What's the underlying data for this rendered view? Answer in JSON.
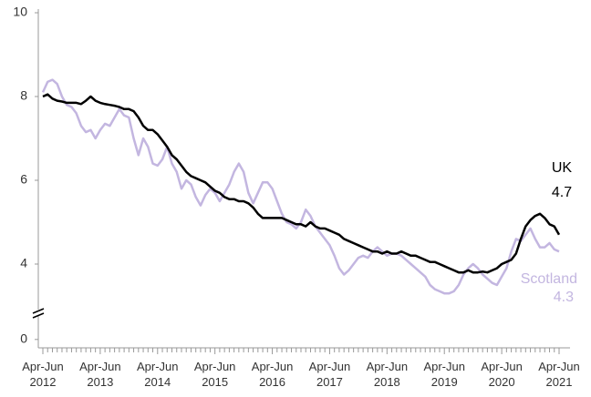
{
  "chart_data": {
    "type": "line",
    "categories": [
      "Apr-Jun 2012",
      null,
      null,
      null,
      null,
      null,
      null,
      null,
      null,
      null,
      null,
      null,
      "Apr-Jun 2013",
      null,
      null,
      null,
      null,
      null,
      null,
      null,
      null,
      null,
      null,
      null,
      "Apr-Jun 2014",
      null,
      null,
      null,
      null,
      null,
      null,
      null,
      null,
      null,
      null,
      null,
      "Apr-Jun 2015",
      null,
      null,
      null,
      null,
      null,
      null,
      null,
      null,
      null,
      null,
      null,
      "Apr-Jun 2016",
      null,
      null,
      null,
      null,
      null,
      null,
      null,
      null,
      null,
      null,
      null,
      "Apr-Jun 2017",
      null,
      null,
      null,
      null,
      null,
      null,
      null,
      null,
      null,
      null,
      null,
      "Apr-Jun 2018",
      null,
      null,
      null,
      null,
      null,
      null,
      null,
      null,
      null,
      null,
      null,
      "Apr-Jun 2019",
      null,
      null,
      null,
      null,
      null,
      null,
      null,
      null,
      null,
      null,
      null,
      "Apr-Jun 2020",
      null,
      null,
      null,
      null,
      null,
      null,
      null,
      null,
      null,
      null,
      null,
      "Apr-Jun 2021"
    ],
    "series": [
      {
        "name": "UK",
        "color": "#000000",
        "values": [
          8.0,
          8.05,
          7.95,
          7.9,
          7.88,
          7.85,
          7.85,
          7.85,
          7.82,
          7.9,
          8.0,
          7.9,
          7.85,
          7.82,
          7.8,
          7.78,
          7.75,
          7.7,
          7.7,
          7.65,
          7.5,
          7.3,
          7.2,
          7.2,
          7.1,
          6.95,
          6.8,
          6.6,
          6.5,
          6.35,
          6.2,
          6.1,
          6.05,
          6.0,
          5.95,
          5.85,
          5.75,
          5.7,
          5.6,
          5.55,
          5.55,
          5.5,
          5.5,
          5.45,
          5.35,
          5.2,
          5.1,
          5.1,
          5.1,
          5.1,
          5.1,
          5.05,
          5.0,
          4.95,
          4.95,
          4.9,
          5.0,
          4.9,
          4.85,
          4.85,
          4.8,
          4.75,
          4.7,
          4.6,
          4.55,
          4.5,
          4.45,
          4.4,
          4.35,
          4.3,
          4.3,
          4.25,
          4.3,
          4.25,
          4.25,
          4.3,
          4.25,
          4.2,
          4.2,
          4.15,
          4.1,
          4.05,
          4.05,
          4.0,
          3.95,
          3.9,
          3.85,
          3.8,
          3.8,
          3.85,
          3.8,
          3.8,
          3.82,
          3.8,
          3.85,
          3.9,
          4.0,
          4.05,
          4.1,
          4.25,
          4.6,
          4.9,
          5.05,
          5.15,
          5.2,
          5.1,
          4.95,
          4.9,
          4.7
        ]
      },
      {
        "name": "Scotland",
        "color": "#c3b6e0",
        "values": [
          8.1,
          8.35,
          8.4,
          8.3,
          8.0,
          7.8,
          7.75,
          7.6,
          7.3,
          7.15,
          7.2,
          7.0,
          7.2,
          7.35,
          7.3,
          7.5,
          7.7,
          7.55,
          7.5,
          7.0,
          6.6,
          7.0,
          6.8,
          6.4,
          6.35,
          6.5,
          6.8,
          6.4,
          6.2,
          5.8,
          6.0,
          5.9,
          5.6,
          5.4,
          5.65,
          5.8,
          5.7,
          5.5,
          5.7,
          5.9,
          6.2,
          6.4,
          6.2,
          5.7,
          5.45,
          5.7,
          5.95,
          5.95,
          5.8,
          5.5,
          5.2,
          5.0,
          4.95,
          4.85,
          5.0,
          5.3,
          5.15,
          4.9,
          4.75,
          4.6,
          4.45,
          4.2,
          3.9,
          3.75,
          3.85,
          4.0,
          4.15,
          4.2,
          4.15,
          4.3,
          4.4,
          4.3,
          4.2,
          4.25,
          4.25,
          4.2,
          4.1,
          4.0,
          3.9,
          3.8,
          3.7,
          3.5,
          3.4,
          3.35,
          3.3,
          3.3,
          3.35,
          3.5,
          3.75,
          3.9,
          4.0,
          3.9,
          3.75,
          3.65,
          3.55,
          3.5,
          3.7,
          3.9,
          4.3,
          4.6,
          4.55,
          4.7,
          4.85,
          4.6,
          4.4,
          4.4,
          4.5,
          4.35,
          4.3
        ]
      }
    ],
    "ylim": [
      0,
      10
    ],
    "yticks": [
      0,
      4,
      6,
      8,
      10
    ],
    "y_axis_break": [
      0.8,
      3
    ],
    "grid": false
  }
}
